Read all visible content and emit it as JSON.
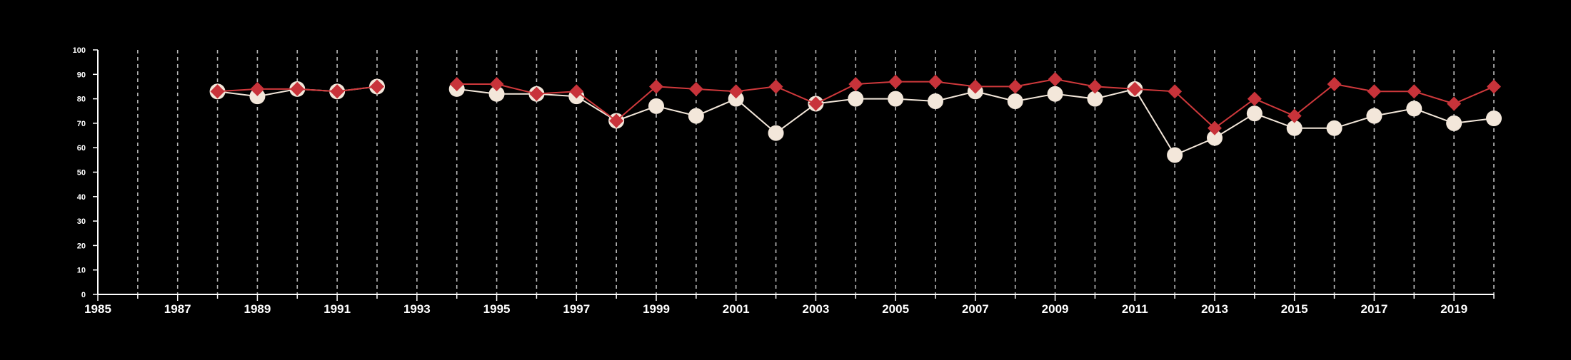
{
  "colors": {
    "background": "#000000",
    "axis": "#ffffff",
    "grid": "#bbbbbb",
    "series_white_line": "#f3e7da",
    "series_white_marker": "#f3e7da",
    "series_red_line": "#d0393c",
    "series_red_marker": "#c8333a"
  },
  "chart_data": {
    "type": "line",
    "title": "",
    "xlabel": "",
    "ylabel": "",
    "xlim": [
      1985,
      2020
    ],
    "ylim": [
      0,
      100
    ],
    "x_ticks": [
      "1985",
      "1987",
      "1989",
      "1991",
      "1993",
      "1995",
      "1997",
      "1999",
      "2001",
      "2003",
      "2005",
      "2007",
      "2009",
      "2011",
      "2013",
      "2015",
      "2017",
      "2019"
    ],
    "y_ticks": [
      "0",
      "10",
      "20",
      "30",
      "40",
      "50",
      "60",
      "70",
      "80",
      "90",
      "100"
    ],
    "grid": "vertical dashed, every year",
    "legend": "none",
    "series": [
      {
        "marker": "circle",
        "color": "#f3e7da",
        "points": [
          [
            1988,
            83
          ],
          [
            1989,
            81
          ],
          [
            1990,
            84
          ],
          [
            1991,
            83
          ],
          [
            1992,
            85
          ],
          null,
          [
            1994,
            84
          ],
          [
            1995,
            82
          ],
          [
            1996,
            82
          ],
          [
            1997,
            81
          ],
          [
            1998,
            71
          ],
          [
            1999,
            77
          ],
          [
            2000,
            73
          ],
          [
            2001,
            80
          ],
          [
            2002,
            66
          ],
          [
            2003,
            78
          ],
          [
            2004,
            80
          ],
          [
            2005,
            80
          ],
          [
            2006,
            79
          ],
          [
            2007,
            83
          ],
          [
            2008,
            79
          ],
          [
            2009,
            82
          ],
          [
            2010,
            80
          ],
          [
            2011,
            84
          ],
          [
            2012,
            57
          ],
          [
            2013,
            64
          ],
          [
            2014,
            74
          ],
          [
            2015,
            68
          ],
          [
            2016,
            68
          ],
          [
            2017,
            73
          ],
          [
            2018,
            76
          ],
          [
            2019,
            70
          ],
          [
            2020,
            72
          ]
        ]
      },
      {
        "marker": "diamond",
        "color": "#c8333a",
        "points": [
          [
            1988,
            83
          ],
          [
            1989,
            84
          ],
          [
            1990,
            84
          ],
          [
            1991,
            83
          ],
          [
            1992,
            85
          ],
          null,
          [
            1994,
            86
          ],
          [
            1995,
            86
          ],
          [
            1996,
            82
          ],
          [
            1997,
            83
          ],
          [
            1998,
            71
          ],
          [
            1999,
            85
          ],
          [
            2000,
            84
          ],
          [
            2001,
            83
          ],
          [
            2002,
            85
          ],
          [
            2003,
            78
          ],
          [
            2004,
            86
          ],
          [
            2005,
            87
          ],
          [
            2006,
            87
          ],
          [
            2007,
            85
          ],
          [
            2008,
            85
          ],
          [
            2009,
            88
          ],
          [
            2010,
            85
          ],
          [
            2011,
            84
          ],
          [
            2012,
            83
          ],
          [
            2013,
            68
          ],
          [
            2014,
            80
          ],
          [
            2015,
            73
          ],
          [
            2016,
            86
          ],
          [
            2017,
            83
          ],
          [
            2018,
            83
          ],
          [
            2019,
            78
          ],
          [
            2020,
            85
          ]
        ]
      }
    ]
  }
}
